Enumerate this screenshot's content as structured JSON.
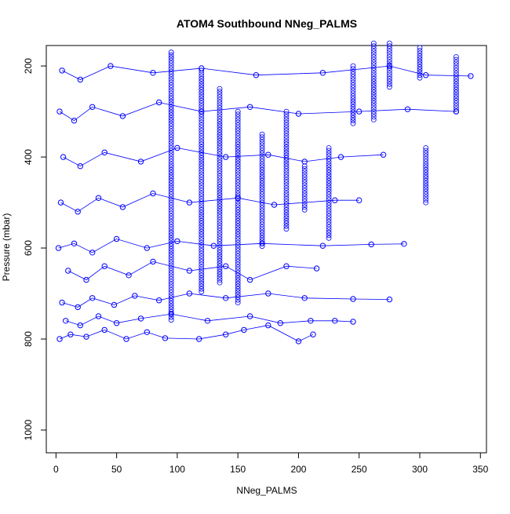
{
  "chart_data": {
    "type": "scatter",
    "title": "ATOM4 Southbound NNeg_PALMS",
    "xlabel": "NNeg_PALMS",
    "ylabel": "Pressure (mbar)",
    "xlim": [
      -8,
      355
    ],
    "ylim": [
      1050,
      155
    ],
    "y_reversed": true,
    "xticks": [
      0,
      50,
      100,
      150,
      200,
      250,
      300,
      350
    ],
    "yticks": [
      200,
      400,
      600,
      800,
      1000
    ],
    "grid": false,
    "legend": "none",
    "marker": "open-circle",
    "color": "#0000ff",
    "connect_points": true,
    "series": [
      {
        "points": [
          [
            3,
            800
          ],
          [
            12,
            790
          ],
          [
            25,
            795
          ],
          [
            40,
            780
          ],
          [
            58,
            800
          ],
          [
            75,
            785
          ],
          [
            90,
            798
          ],
          [
            118,
            800
          ],
          [
            140,
            790
          ],
          [
            155,
            780
          ],
          [
            175,
            770
          ],
          [
            200,
            805
          ],
          [
            212,
            790
          ]
        ]
      },
      {
        "points": [
          [
            8,
            760
          ],
          [
            20,
            770
          ],
          [
            35,
            750
          ],
          [
            50,
            765
          ],
          [
            70,
            755
          ],
          [
            95,
            745
          ],
          [
            125,
            760
          ],
          [
            160,
            750
          ],
          [
            185,
            765
          ],
          [
            210,
            760
          ],
          [
            230,
            760
          ],
          [
            245,
            762
          ]
        ]
      },
      {
        "points": [
          [
            5,
            720
          ],
          [
            18,
            730
          ],
          [
            30,
            710
          ],
          [
            48,
            725
          ],
          [
            65,
            705
          ],
          [
            85,
            715
          ],
          [
            110,
            700
          ],
          [
            140,
            710
          ],
          [
            175,
            700
          ],
          [
            205,
            710
          ],
          [
            245,
            712
          ],
          [
            275,
            713
          ]
        ]
      },
      {
        "points": [
          [
            10,
            650
          ],
          [
            25,
            670
          ],
          [
            40,
            640
          ],
          [
            60,
            660
          ],
          [
            80,
            630
          ],
          [
            110,
            650
          ],
          [
            140,
            640
          ],
          [
            160,
            670
          ],
          [
            190,
            640
          ],
          [
            215,
            645
          ]
        ]
      },
      {
        "points": [
          [
            2,
            600
          ],
          [
            15,
            590
          ],
          [
            30,
            610
          ],
          [
            50,
            580
          ],
          [
            75,
            600
          ],
          [
            100,
            585
          ],
          [
            130,
            595
          ],
          [
            170,
            590
          ],
          [
            220,
            595
          ],
          [
            260,
            592
          ],
          [
            287,
            591
          ]
        ]
      },
      {
        "points": [
          [
            4,
            500
          ],
          [
            18,
            520
          ],
          [
            35,
            490
          ],
          [
            55,
            510
          ],
          [
            80,
            480
          ],
          [
            110,
            500
          ],
          [
            150,
            490
          ],
          [
            180,
            505
          ],
          [
            230,
            495
          ],
          [
            250,
            495
          ]
        ]
      },
      {
        "points": [
          [
            6,
            400
          ],
          [
            20,
            420
          ],
          [
            40,
            390
          ],
          [
            70,
            410
          ],
          [
            100,
            380
          ],
          [
            140,
            400
          ],
          [
            175,
            395
          ],
          [
            205,
            410
          ],
          [
            235,
            400
          ],
          [
            270,
            395
          ]
        ]
      },
      {
        "points": [
          [
            3,
            300
          ],
          [
            15,
            320
          ],
          [
            30,
            290
          ],
          [
            55,
            310
          ],
          [
            85,
            280
          ],
          [
            120,
            300
          ],
          [
            160,
            290
          ],
          [
            200,
            305
          ],
          [
            250,
            300
          ],
          [
            290,
            295
          ],
          [
            330,
            300
          ]
        ]
      },
      {
        "points": [
          [
            5,
            210
          ],
          [
            20,
            230
          ],
          [
            45,
            200
          ],
          [
            80,
            215
          ],
          [
            120,
            205
          ],
          [
            165,
            220
          ],
          [
            220,
            215
          ],
          [
            275,
            200
          ],
          [
            305,
            220
          ],
          [
            342,
            222
          ]
        ]
      }
    ],
    "profile_columns": [
      {
        "x": 95,
        "p_top": 170,
        "p_bottom": 760
      },
      {
        "x": 120,
        "p_top": 210,
        "p_bottom": 700
      },
      {
        "x": 135,
        "p_top": 250,
        "p_bottom": 680
      },
      {
        "x": 150,
        "p_top": 300,
        "p_bottom": 720
      },
      {
        "x": 170,
        "p_top": 350,
        "p_bottom": 600
      },
      {
        "x": 190,
        "p_top": 300,
        "p_bottom": 560
      },
      {
        "x": 205,
        "p_top": 420,
        "p_bottom": 520
      },
      {
        "x": 225,
        "p_top": 380,
        "p_bottom": 580
      },
      {
        "x": 245,
        "p_top": 200,
        "p_bottom": 330
      },
      {
        "x": 262,
        "p_top": 150,
        "p_bottom": 320
      },
      {
        "x": 275,
        "p_top": 150,
        "p_bottom": 250
      },
      {
        "x": 305,
        "p_top": 380,
        "p_bottom": 500
      },
      {
        "x": 300,
        "p_top": 160,
        "p_bottom": 230
      },
      {
        "x": 330,
        "p_top": 180,
        "p_bottom": 300
      }
    ]
  }
}
